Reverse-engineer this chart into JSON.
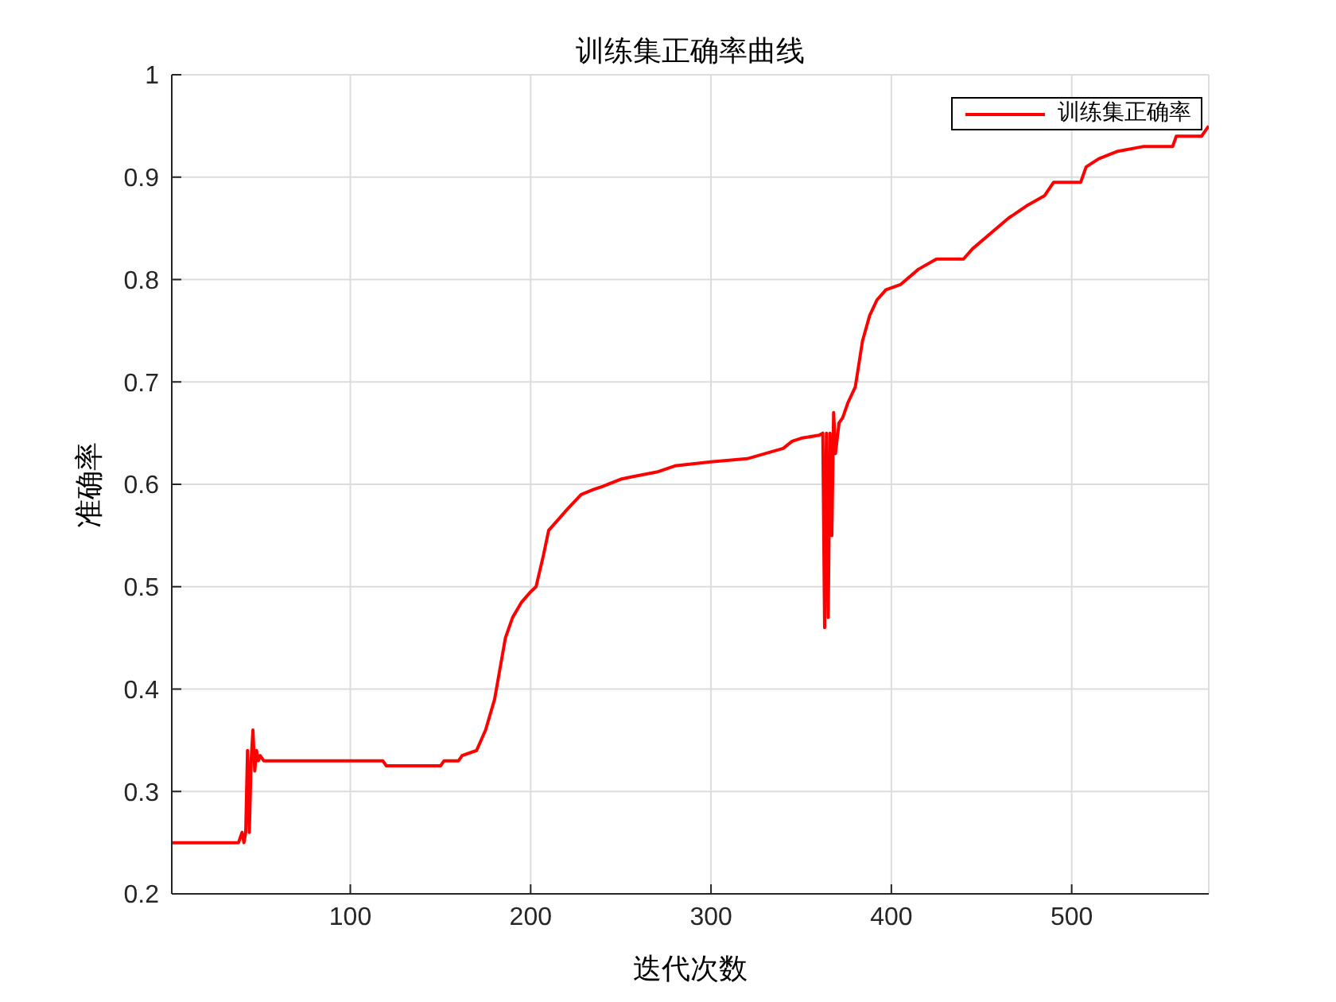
{
  "chart_data": {
    "type": "line",
    "title": "训练集正确率曲线",
    "xlabel": "迭代次数",
    "ylabel": "准确率",
    "x": [
      1,
      38,
      40,
      41,
      42,
      43,
      44,
      45,
      46,
      47,
      48,
      49,
      50,
      52,
      118,
      120,
      150,
      152,
      160,
      162,
      170,
      175,
      180,
      183,
      186,
      190,
      195,
      200,
      203,
      207,
      210,
      215,
      220,
      228,
      235,
      240,
      250,
      258,
      270,
      280,
      300,
      320,
      330,
      340,
      345,
      350,
      360,
      362,
      363,
      364,
      365,
      366,
      367,
      368,
      369,
      371,
      373,
      376,
      380,
      384,
      388,
      392,
      397,
      405,
      415,
      425,
      430,
      440,
      445,
      455,
      465,
      475,
      485,
      490,
      505,
      508,
      515,
      525,
      540,
      556,
      558,
      572,
      576
    ],
    "series": [
      {
        "name": "训练集正确率",
        "color": "#ff0000",
        "values": [
          0.25,
          0.25,
          0.26,
          0.25,
          0.26,
          0.34,
          0.26,
          0.33,
          0.36,
          0.32,
          0.34,
          0.33,
          0.335,
          0.33,
          0.33,
          0.325,
          0.325,
          0.33,
          0.33,
          0.335,
          0.34,
          0.36,
          0.39,
          0.42,
          0.45,
          0.47,
          0.485,
          0.495,
          0.5,
          0.53,
          0.555,
          0.565,
          0.575,
          0.59,
          0.595,
          0.598,
          0.605,
          0.608,
          0.612,
          0.618,
          0.622,
          0.625,
          0.63,
          0.635,
          0.642,
          0.645,
          0.648,
          0.65,
          0.46,
          0.65,
          0.47,
          0.65,
          0.55,
          0.67,
          0.63,
          0.66,
          0.665,
          0.68,
          0.695,
          0.74,
          0.765,
          0.78,
          0.79,
          0.795,
          0.81,
          0.82,
          0.82,
          0.82,
          0.83,
          0.845,
          0.86,
          0.872,
          0.882,
          0.895,
          0.895,
          0.91,
          0.918,
          0.925,
          0.93,
          0.93,
          0.94,
          0.94,
          0.95
        ]
      }
    ],
    "xlim": [
      1,
      576
    ],
    "xticks": [
      100,
      200,
      300,
      400,
      500
    ],
    "ylim": [
      0.2,
      1
    ],
    "yticks": [
      0.2,
      0.3,
      0.4,
      0.5,
      0.6,
      0.7,
      0.8,
      0.9,
      1
    ],
    "grid": true,
    "legend": "top right",
    "marker": "none",
    "line_style": "solid"
  }
}
